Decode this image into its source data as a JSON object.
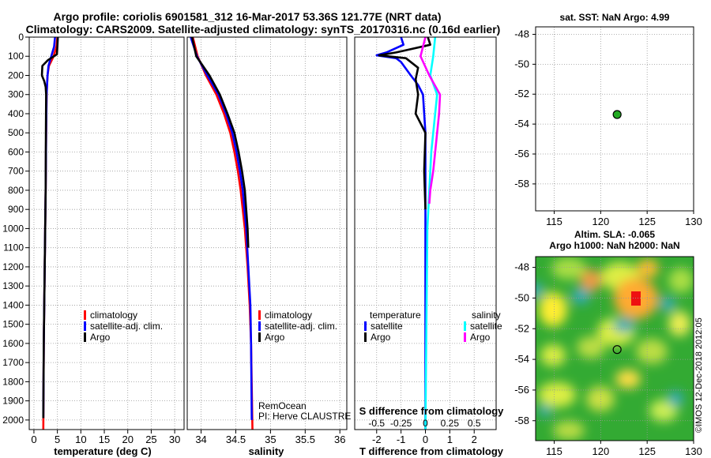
{
  "title": {
    "line1": "Argo profile: coriolis 6901581_312 16-Mar-2017 53.36S 121.77E (NRT data)",
    "line2": "Climatology: CARS2009. Satellite-adjusted climatology: synTS_20170316.nc (0.16d earlier)"
  },
  "depth_ticks": [
    "0",
    "100",
    "200",
    "300",
    "400",
    "500",
    "600",
    "700",
    "800",
    "900",
    "1000",
    "1100",
    "1200",
    "1300",
    "1400",
    "1500",
    "1600",
    "1700",
    "1800",
    "1900",
    "2000"
  ],
  "colors": {
    "climatology": "#ff0000",
    "satellite": "#0000ff",
    "argo": "#000000",
    "sat_salinity": "#00ffff",
    "argo_salinity": "#ff00ff",
    "float_marker": "#22aa22"
  },
  "chart_data": [
    {
      "type": "line",
      "panel": "temperature",
      "xlabel": "temperature (deg C)",
      "xlim": [
        -1,
        32
      ],
      "x_ticks": [
        "0",
        "5",
        "10",
        "15",
        "20",
        "25",
        "30"
      ],
      "ylim": [
        0,
        2050
      ],
      "legend": [
        "climatology",
        "satellite-adj. clim.",
        "Argo"
      ],
      "series": [
        {
          "name": "climatology",
          "depth": [
            0,
            50,
            100,
            150,
            200,
            300,
            500,
            800,
            1200,
            1600,
            2050
          ],
          "values": [
            5.0,
            4.8,
            4.2,
            3.2,
            2.9,
            2.7,
            2.6,
            2.5,
            2.3,
            2.1,
            2.0
          ]
        },
        {
          "name": "satellite-adj. clim.",
          "depth": [
            0,
            50,
            100,
            150,
            200,
            300,
            500,
            800,
            1200,
            1600,
            1990
          ],
          "values": [
            4.5,
            4.3,
            3.7,
            3.1,
            2.9,
            2.7,
            2.6,
            2.5,
            2.3,
            2.1,
            2.0
          ]
        },
        {
          "name": "Argo",
          "depth": [
            0,
            50,
            90,
            120,
            150,
            200,
            230,
            260,
            300,
            500,
            800,
            1200,
            1600,
            1990
          ],
          "values": [
            5.1,
            5.0,
            4.9,
            3.0,
            1.8,
            1.7,
            2.2,
            2.5,
            2.6,
            2.55,
            2.5,
            2.3,
            2.1,
            2.0
          ]
        }
      ]
    },
    {
      "type": "line",
      "panel": "salinity",
      "xlabel": "salinity",
      "xlim": [
        33.8,
        36.1
      ],
      "x_ticks": [
        "34",
        "34.5",
        "35",
        "35.5",
        "36"
      ],
      "ylim": [
        0,
        2050
      ],
      "legend": [
        "climatology",
        "satellite-adj. clim.",
        "Argo"
      ],
      "annotation": [
        "RemOcean",
        "PI: Herve CLAUSTRE"
      ],
      "series": [
        {
          "name": "climatology",
          "depth": [
            0,
            100,
            200,
            300,
            400,
            500,
            600,
            700,
            800,
            1000,
            1200,
            1400,
            1600,
            2050
          ],
          "values": [
            33.88,
            33.95,
            34.07,
            34.22,
            34.33,
            34.42,
            34.48,
            34.53,
            34.57,
            34.63,
            34.67,
            34.7,
            34.72,
            34.74
          ]
        },
        {
          "name": "satellite-adj. clim.",
          "depth": [
            0,
            100,
            200,
            300,
            400,
            500,
            600,
            700,
            800,
            1000,
            1200,
            1400,
            1600,
            2000
          ],
          "values": [
            33.85,
            33.94,
            34.09,
            34.25,
            34.36,
            34.45,
            34.51,
            34.56,
            34.6,
            34.65,
            34.68,
            34.71,
            34.72,
            34.73
          ]
        },
        {
          "name": "Argo",
          "depth": [
            0,
            100,
            200,
            300,
            400,
            500,
            600,
            700,
            800,
            900,
            1000,
            1100
          ],
          "values": [
            33.87,
            33.93,
            34.12,
            34.27,
            34.38,
            34.48,
            34.54,
            34.59,
            34.63,
            34.65,
            34.67,
            34.68
          ]
        }
      ]
    },
    {
      "type": "line",
      "panel": "difference",
      "xlabel": "T difference from climatology",
      "xlim": [
        -2.9,
        2.9
      ],
      "x_ticks": [
        "-2",
        "-1",
        "0",
        "1",
        "2"
      ],
      "s_axis_label": "S difference from climatology",
      "s_ticks": [
        "-0.5",
        "-0.25",
        "0",
        "0.25",
        "0.5"
      ],
      "ylim": [
        0,
        2050
      ],
      "legend_left_title": "temperature",
      "legend_right_title": "salinity",
      "legend": [
        "satellite",
        "Argo"
      ],
      "series": [
        {
          "name": "T satellite",
          "depth": [
            0,
            40,
            80,
            95,
            110,
            130,
            200,
            250,
            300,
            500,
            800,
            1200,
            1600,
            2050
          ],
          "values": [
            -1.0,
            -0.9,
            -1.6,
            -2.0,
            -1.2,
            -1.0,
            -0.6,
            -0.3,
            -0.1,
            0,
            0,
            0,
            0,
            0
          ]
        },
        {
          "name": "T Argo",
          "depth": [
            0,
            40,
            80,
            95,
            110,
            160,
            220,
            300,
            400,
            500,
            700,
            900
          ],
          "values": [
            0.1,
            0.2,
            -1.2,
            -1.9,
            -0.8,
            -0.3,
            -0.4,
            -0.3,
            -0.4,
            0,
            -0.05,
            0
          ]
        },
        {
          "name": "S satellite",
          "depth": [
            0,
            100,
            200,
            300,
            400,
            500,
            600,
            800,
            1000,
            1500,
            2050
          ],
          "values": [
            0.1,
            0.08,
            0.05,
            0.12,
            0.1,
            0.08,
            0.06,
            0.04,
            0.02,
            0.01,
            0
          ]
        },
        {
          "name": "S Argo",
          "depth": [
            0,
            100,
            200,
            300,
            400,
            500,
            600,
            700,
            800,
            870
          ],
          "values": [
            0,
            -0.05,
            0.04,
            0.15,
            0.14,
            0.12,
            0.1,
            0.08,
            0.05,
            0.04
          ]
        }
      ]
    },
    {
      "type": "scatter",
      "panel": "sst_map",
      "title": "sat. SST: NaN Argo: 4.99",
      "xlim": [
        113,
        130
      ],
      "ylim": [
        -59.8,
        -47.5
      ],
      "x_ticks": [
        "115",
        "120",
        "125",
        "130"
      ],
      "y_ticks": [
        "-48",
        "-50",
        "-52",
        "-54",
        "-56",
        "-58"
      ],
      "points": [
        {
          "lon": 121.77,
          "lat": -53.36
        }
      ]
    },
    {
      "type": "heatmap",
      "panel": "sla_map",
      "title": [
        "Altim. SLA: -0.065",
        "Argo h1000: NaN h2000: NaN"
      ],
      "xlim": [
        113,
        130
      ],
      "ylim": [
        -59.3,
        -47.3
      ],
      "x_ticks": [
        "115",
        "120",
        "125",
        "130"
      ],
      "y_ticks": [
        "-48",
        "-50",
        "-52",
        "-54",
        "-56",
        "-58"
      ],
      "points": [
        {
          "lon": 121.77,
          "lat": -53.36
        }
      ],
      "credit": "©IMOS 12-Dec-2018 2012:05"
    }
  ]
}
